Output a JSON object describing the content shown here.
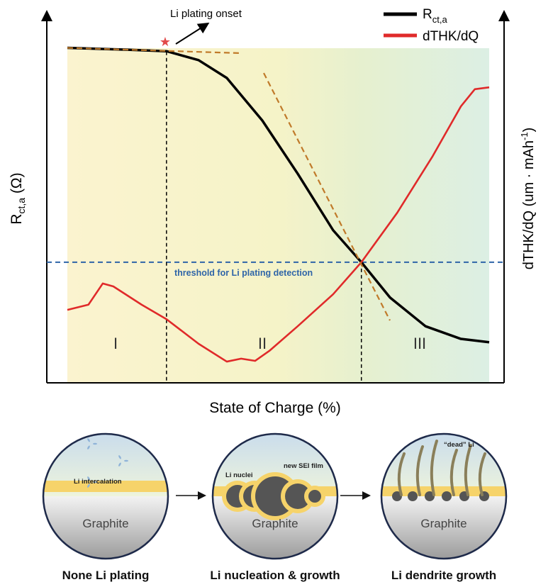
{
  "chart_data": {
    "type": "line",
    "xlabel": "State of Charge (%)",
    "ylabel_left": {
      "main": "R",
      "sub": "ct,a",
      "unit": " (Ω)"
    },
    "ylabel_right": {
      "main": "dTHK/dQ (um · mAh",
      "sup": "-1",
      "end": ")"
    },
    "xlim": [
      0,
      100
    ],
    "ylim": [
      0,
      100
    ],
    "legend": {
      "placement": "top-right",
      "entries": [
        {
          "main": "R",
          "sub": "ct,a"
        },
        {
          "main": "dTHK/dQ"
        }
      ]
    },
    "series": [
      {
        "name": "Rct,a",
        "color": "#000000",
        "x": [
          0,
          14.3,
          23.5,
          31.1,
          37.8,
          46.2,
          54.6,
          63,
          69.7,
          76.5,
          84.9,
          93.3,
          100
        ],
        "y": [
          90,
          89.5,
          89.1,
          86.7,
          81.9,
          70.5,
          56.2,
          41,
          32.4,
          22.9,
          15.2,
          11.8,
          10.9
        ]
      },
      {
        "name": "dTHK/dQ",
        "color": "#e02a2a",
        "x": [
          0,
          5,
          8.4,
          10.9,
          17.6,
          23.5,
          31.1,
          37.8,
          41.2,
          44.5,
          47.9,
          54.6,
          63,
          69.7,
          78.2,
          86.6,
          93.3,
          96.6,
          100
        ],
        "y": [
          19.6,
          21,
          26.7,
          25.9,
          21,
          17.1,
          10.5,
          5.7,
          6.5,
          5.9,
          8.6,
          15.2,
          23.8,
          32.4,
          45.7,
          60.9,
          74.3,
          78.9,
          79.4
        ]
      }
    ],
    "threshold": {
      "y": 32.4,
      "label": "threshold for Li plating detection",
      "color": "#2f65a8"
    },
    "onset": {
      "x": 23.5,
      "label": "Li plating onset",
      "star_color": "#e24a4a"
    },
    "crossing_x": 69.7,
    "regions": [
      "I",
      "II",
      "III"
    ]
  },
  "illustrations": [
    {
      "title": "None Li plating",
      "substrate": "Graphite",
      "labels": [
        "Li intercalation"
      ]
    },
    {
      "title": "Li nucleation & growth",
      "substrate": "Graphite",
      "labels": [
        "Li nuclei",
        "new SEI film"
      ]
    },
    {
      "title": "Li dendrite growth",
      "substrate": "Graphite",
      "labels": [
        "“dead” Li"
      ]
    }
  ]
}
